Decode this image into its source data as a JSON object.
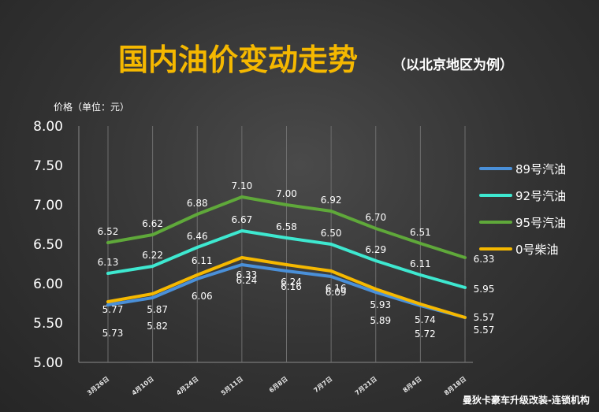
{
  "title": "国内油价变动走势",
  "subtitle": "（以北京地区为例）",
  "watermark": "曼狄卡豪车升级改装-连锁机构",
  "chart_data": {
    "type": "line",
    "ylabel": "价格（单位：元）",
    "xlabel": "",
    "ylim": [
      5.0,
      8.0
    ],
    "yticks": [
      "5.00",
      "5.50",
      "6.00",
      "6.50",
      "7.00",
      "7.50",
      "8.00"
    ],
    "categories": [
      "3月26日",
      "4月10日",
      "4月24日",
      "5月11日",
      "6月8日",
      "7月7日",
      "7月21日",
      "8月4日",
      "8月18日"
    ],
    "grid": "vertical",
    "legend": "right",
    "series": [
      {
        "name": "89号汽油",
        "color": "#4a90d9",
        "values": [
          5.73,
          5.82,
          6.06,
          6.24,
          6.16,
          6.09,
          5.89,
          5.72,
          5.57
        ]
      },
      {
        "name": "92号汽油",
        "color": "#3ee8d0",
        "values": [
          6.13,
          6.22,
          6.46,
          6.67,
          6.58,
          6.5,
          6.29,
          6.11,
          5.95
        ]
      },
      {
        "name": "95号汽油",
        "color": "#5fa83a",
        "values": [
          6.52,
          6.62,
          6.88,
          7.1,
          7.0,
          6.92,
          6.7,
          6.51,
          6.33
        ]
      },
      {
        "name": "0号柴油",
        "color": "#f5b800",
        "values": [
          5.77,
          5.87,
          6.11,
          6.33,
          6.24,
          6.16,
          5.93,
          5.74,
          5.57
        ]
      }
    ]
  }
}
